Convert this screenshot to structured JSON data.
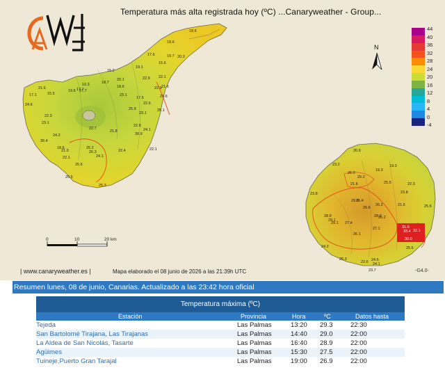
{
  "map": {
    "title": "Temperatura más alta registrada hoy (ºC)    ...Canaryweather - Group...",
    "site": "| www.canaryweather.es |",
    "elaborated": "Mapa elaborado el 08 junio de 2026 a las 21:39h UTC",
    "code": "-G4.0-",
    "north": "N",
    "scale_labels": [
      "0",
      "10",
      "20 km"
    ],
    "legend": {
      "ticks": [
        "44",
        "40",
        "36",
        "32",
        "28",
        "24",
        "20",
        "16",
        "12",
        "8",
        "4",
        "0",
        "-4"
      ],
      "colors": [
        "#a8008a",
        "#d81b60",
        "#e53935",
        "#f4511e",
        "#fb8c00",
        "#fdd835",
        "#cddc39",
        "#7cb342",
        "#26a69a",
        "#00bcd4",
        "#29b6f6",
        "#1e88e5",
        "#1a237e"
      ]
    },
    "tenerife_labels": [
      "18.6",
      "18.6",
      "19.7",
      "20.3",
      "17.6",
      "15.6",
      "19.1",
      "15.2",
      "16.3",
      "17.7",
      "18.7",
      "20.1",
      "18.6",
      "22.9",
      "22.1",
      "21.6",
      "17.1",
      "15.5",
      "19.6",
      "17.7",
      "22.9",
      "21.6",
      "17.5",
      "22.7",
      "21.8",
      "22.9",
      "24.1",
      "30.9",
      "24.2",
      "30.4",
      "18.6",
      "21.0",
      "22.1",
      "25.2",
      "26.3",
      "24.1",
      "25.6",
      "25.5",
      "22.4",
      "25.3",
      "23.1",
      "22.3",
      "22.6",
      "21.6",
      "25.9",
      "22.1",
      "24.6",
      "23.1",
      "23.1",
      "25.1"
    ],
    "gc_labels": [
      "20.9",
      "19.3",
      "23.2",
      "26.0",
      "29.2",
      "19.3",
      "21.6",
      "23.8",
      "25.5",
      "22.3",
      "23.8",
      "21.5",
      "29.6",
      "26.6",
      "28.9",
      "29.1",
      "29.1",
      "25.4",
      "28.2",
      "26.1",
      "27.4",
      "27.1",
      "26.2",
      "31.0",
      "33.4",
      "32.1",
      "30.0",
      "24.2",
      "25.3",
      "25.6",
      "24.6",
      "24.1",
      "23.7",
      "26.2",
      "22.6",
      "25.6"
    ]
  },
  "summary": "Resumen lunes, 08 de junio, Canarias. Actualizado a las 23:42 hora oficial",
  "table": {
    "caption": "Temperatura máxima (ºC)",
    "headers": [
      "Estación",
      "Provincia",
      "Hora",
      "ºC",
      "Datos hasta"
    ],
    "rows": [
      [
        "Tejeda",
        "Las Palmas",
        "13:20",
        "29.3",
        "22:30"
      ],
      [
        "San Bartolomé Tirajana, Las Tirajanas",
        "Las Palmas",
        "14:40",
        "29.0",
        "22:00"
      ],
      [
        "La Aldea de San Nicolás, Tasarte",
        "Las Palmas",
        "16:40",
        "28.9",
        "22:00"
      ],
      [
        "Agüimes",
        "Las Palmas",
        "15:30",
        "27.5",
        "22:00"
      ],
      [
        "Tuineje,Puerto Gran Tarajal",
        "Las Palmas",
        "19:00",
        "26.9",
        "22:00"
      ]
    ]
  }
}
